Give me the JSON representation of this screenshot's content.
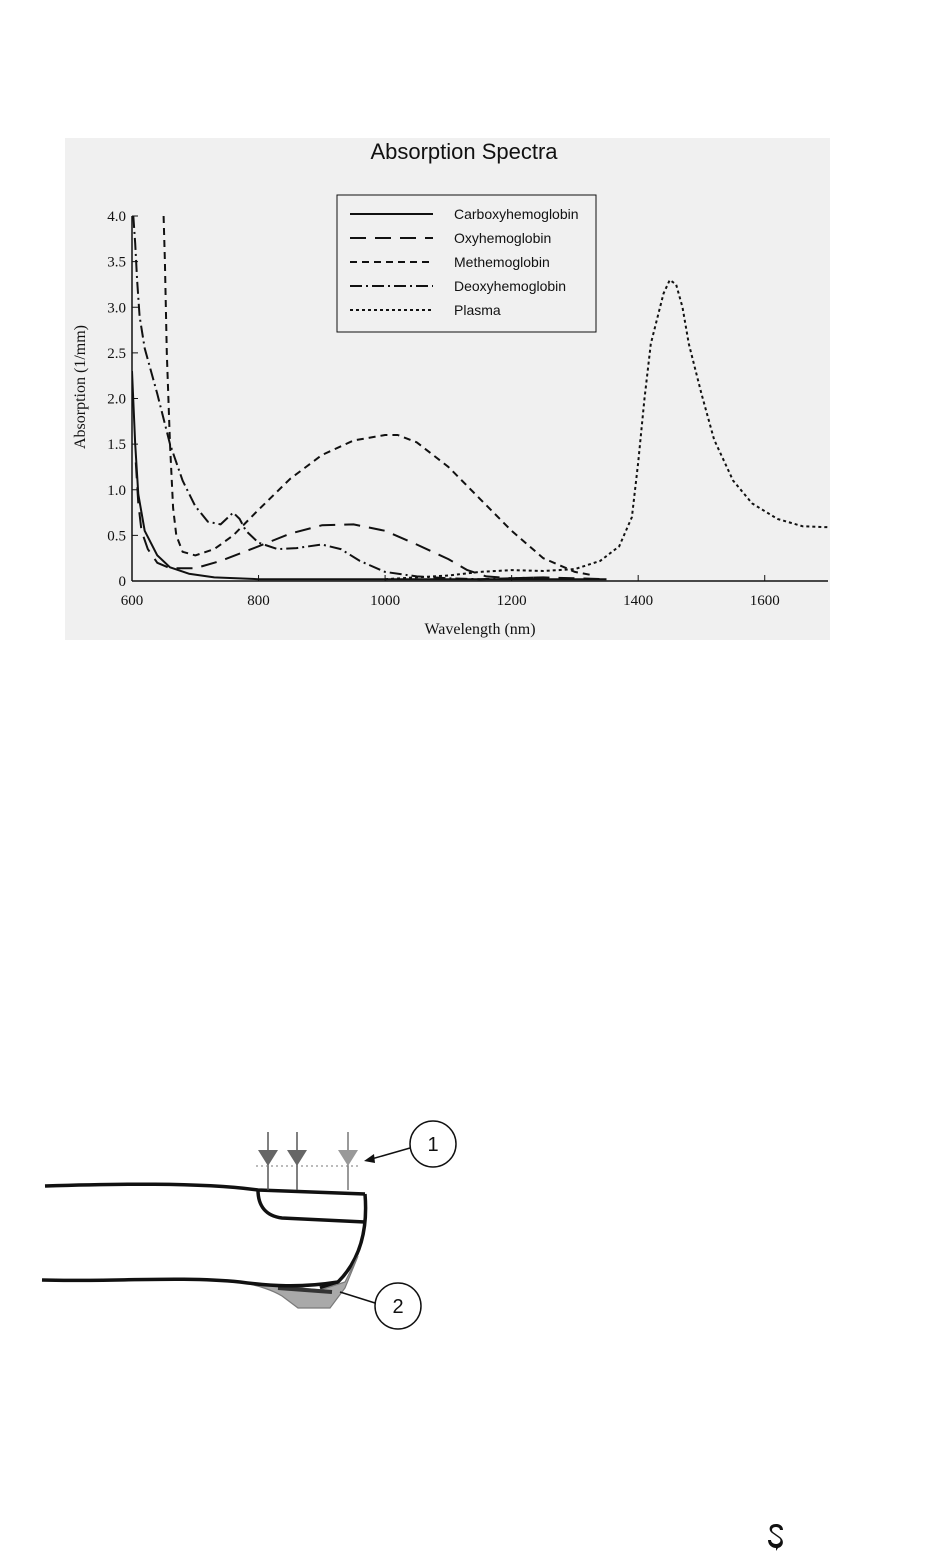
{
  "chart_data": {
    "type": "line",
    "title": "Absorption Spectra",
    "xlabel": "Wavelength (nm)",
    "ylabel": "Absorption (1/mm)",
    "xlim": [
      600,
      1700
    ],
    "ylim": [
      0,
      4.0
    ],
    "xticks": [
      "600",
      "800",
      "1000",
      "1200",
      "1400",
      "1600"
    ],
    "yticks": [
      "0",
      "0.5",
      "1.0",
      "1.5",
      "2.0",
      "2.5",
      "3.0",
      "3.5",
      "4.0"
    ],
    "legend_position": "top-center",
    "grid": false,
    "series": [
      {
        "name": "Carboxyhemoglobin",
        "dash": "none",
        "x": [
          600,
          605,
          610,
          620,
          640,
          660,
          690,
          730,
          800,
          900,
          1000,
          1100,
          1200,
          1300,
          1350
        ],
        "y": [
          2.3,
          1.5,
          0.95,
          0.55,
          0.28,
          0.15,
          0.08,
          0.04,
          0.02,
          0.02,
          0.02,
          0.02,
          0.02,
          0.02,
          0.02
        ]
      },
      {
        "name": "Oxyhemoglobin",
        "dash": "16,9",
        "x": [
          606,
          610,
          615,
          625,
          640,
          660,
          700,
          740,
          800,
          850,
          900,
          950,
          1000,
          1050,
          1100,
          1130,
          1160,
          1200,
          1250,
          1300,
          1350
        ],
        "y": [
          1.3,
          0.85,
          0.55,
          0.35,
          0.2,
          0.14,
          0.14,
          0.22,
          0.38,
          0.52,
          0.61,
          0.62,
          0.55,
          0.4,
          0.24,
          0.12,
          0.05,
          0.03,
          0.04,
          0.03,
          0.02
        ]
      },
      {
        "name": "Methemoglobin",
        "dash": "7,5",
        "x": [
          650,
          652,
          655,
          660,
          665,
          670,
          680,
          700,
          730,
          760,
          800,
          850,
          900,
          950,
          1000,
          1020,
          1050,
          1100,
          1150,
          1200,
          1250,
          1300,
          1330
        ],
        "y": [
          4.0,
          3.5,
          2.5,
          1.5,
          0.8,
          0.5,
          0.32,
          0.28,
          0.35,
          0.5,
          0.78,
          1.12,
          1.38,
          1.54,
          1.6,
          1.6,
          1.52,
          1.25,
          0.9,
          0.55,
          0.25,
          0.1,
          0.06
        ]
      },
      {
        "name": "Deoxyhemoglobin",
        "dash": "12,4,2,4",
        "x": [
          602,
          605,
          608,
          612,
          620,
          630,
          640,
          660,
          680,
          700,
          720,
          740,
          760,
          770,
          780,
          800,
          830,
          860,
          900,
          930,
          960,
          1000,
          1050,
          1100,
          1150,
          1200,
          1250
        ],
        "y": [
          4.0,
          3.7,
          3.3,
          2.9,
          2.55,
          2.3,
          2.05,
          1.5,
          1.1,
          0.82,
          0.65,
          0.62,
          0.75,
          0.68,
          0.55,
          0.42,
          0.35,
          0.36,
          0.4,
          0.35,
          0.22,
          0.1,
          0.05,
          0.03,
          0.02,
          0.03,
          0.04
        ]
      },
      {
        "name": "Plasma",
        "dash": "3,3",
        "x": [
          1000,
          1100,
          1150,
          1200,
          1250,
          1300,
          1340,
          1370,
          1390,
          1400,
          1410,
          1420,
          1440,
          1450,
          1460,
          1470,
          1480,
          1500,
          1520,
          1550,
          1580,
          1620,
          1660,
          1700
        ],
        "y": [
          0.02,
          0.06,
          0.1,
          0.12,
          0.11,
          0.13,
          0.22,
          0.38,
          0.7,
          1.3,
          2.0,
          2.6,
          3.15,
          3.3,
          3.25,
          3.0,
          2.6,
          2.05,
          1.55,
          1.1,
          0.85,
          0.68,
          0.6,
          0.59
        ]
      }
    ]
  },
  "figure": {
    "callout_1": "1",
    "callout_2": "2"
  }
}
